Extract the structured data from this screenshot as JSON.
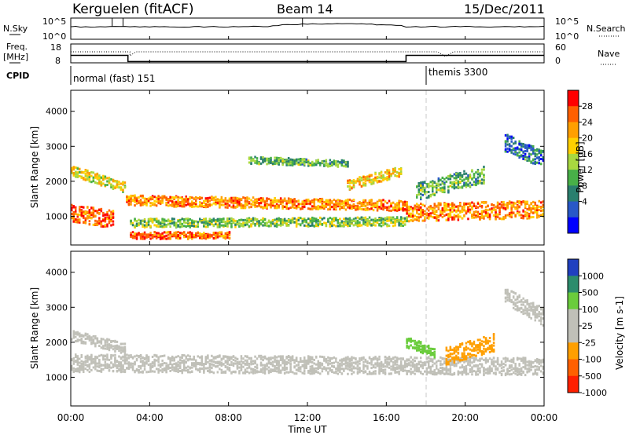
{
  "header": {
    "station": "Kerguelen (fitACF)",
    "beam": "Beam 14",
    "date": "15/Dec/2011"
  },
  "aux_panels": {
    "nsky_label": "N.Sky",
    "nsky_ticks": [
      "10^5",
      "10^0"
    ],
    "nsearch_label": "N.Search",
    "nsearch_ticks": [
      "10^5",
      "10^0"
    ],
    "freq_label": "Freq.",
    "freq_unit": "[MHz]",
    "freq_ticks": [
      "18",
      "8"
    ],
    "nave_label": "Nave",
    "nave_ticks": [
      "60",
      "0"
    ],
    "cpid_label": "CPID",
    "cpid_modes": [
      {
        "name": "normal (fast) 151",
        "start_hour": 0
      },
      {
        "name": "themis 3300",
        "start_hour": 18
      }
    ]
  },
  "chart_data": [
    {
      "type": "heatmap",
      "title": "",
      "xlabel": "Time UT",
      "ylabel": "Slant Range [km]",
      "x_ticks": [
        "00:00",
        "04:00",
        "08:00",
        "12:00",
        "16:00",
        "20:00",
        "00:00"
      ],
      "xlim_hours": [
        0,
        24
      ],
      "ylim_km": [
        180,
        4600
      ],
      "y_ticks": [
        1000,
        2000,
        3000,
        4000
      ],
      "colorbar": {
        "label": "Power [dB]",
        "ticks": [
          "28",
          "24",
          "20",
          "16",
          "12",
          "8",
          "4"
        ],
        "colors": [
          "#ff0000",
          "#ff6000",
          "#ff9f00",
          "#ffd000",
          "#a8d840",
          "#48b048",
          "#2a7f6e",
          "#2858c8",
          "#0000ff"
        ]
      },
      "features": [
        {
          "name": "band",
          "hour_start": 0.0,
          "hour_end": 2.8,
          "km_start": 2300,
          "km_end": 1800,
          "width": 300,
          "level": 18
        },
        {
          "name": "band",
          "hour_start": 0.0,
          "hour_end": 2.2,
          "km_start": 1100,
          "km_end": 900,
          "width": 500,
          "level": 26
        },
        {
          "name": "band",
          "hour_start": 2.8,
          "hour_end": 17.0,
          "km_start": 1450,
          "km_end": 1300,
          "width": 300,
          "level": 24
        },
        {
          "name": "band",
          "hour_start": 3.0,
          "hour_end": 8.0,
          "km_start": 450,
          "km_end": 450,
          "width": 200,
          "level": 26
        },
        {
          "name": "band",
          "hour_start": 3.0,
          "hour_end": 17.0,
          "km_start": 800,
          "km_end": 850,
          "width": 250,
          "level": 14
        },
        {
          "name": "band",
          "hour_start": 14.0,
          "hour_end": 16.8,
          "km_start": 1900,
          "km_end": 2300,
          "width": 300,
          "level": 20
        },
        {
          "name": "band",
          "hour_start": 17.0,
          "hour_end": 24.0,
          "km_start": 1100,
          "km_end": 1200,
          "width": 500,
          "level": 24
        },
        {
          "name": "band",
          "hour_start": 17.5,
          "hour_end": 21.0,
          "km_start": 1700,
          "km_end": 2200,
          "width": 500,
          "level": 12
        },
        {
          "name": "band",
          "hour_start": 22.0,
          "hour_end": 24.0,
          "km_start": 3100,
          "km_end": 2600,
          "width": 500,
          "level": 8
        },
        {
          "name": "band",
          "hour_start": 9.0,
          "hour_end": 14.0,
          "km_start": 2600,
          "km_end": 2500,
          "width": 200,
          "level": 12
        }
      ]
    },
    {
      "type": "heatmap",
      "title": "",
      "xlabel": "Time UT",
      "ylabel": "Slant Range [km]",
      "x_ticks": [
        "00:00",
        "04:00",
        "08:00",
        "12:00",
        "16:00",
        "20:00",
        "00:00"
      ],
      "xlim_hours": [
        0,
        24
      ],
      "ylim_km": [
        180,
        4600
      ],
      "y_ticks": [
        1000,
        2000,
        3000,
        4000
      ],
      "colorbar": {
        "label": "Velocity [m s-1]",
        "ticks": [
          "1000",
          "500",
          "100",
          "25",
          "-25",
          "-100",
          "-500",
          "-1000"
        ],
        "colors": [
          "#2040c0",
          "#2c8c6c",
          "#6acc3c",
          "#c0c0b8",
          "#c0c0b8",
          "#ff9f00",
          "#ff6000",
          "#ff2000"
        ]
      },
      "features": [
        {
          "name": "band",
          "hour_start": 0.0,
          "hour_end": 24.0,
          "km_start": 1400,
          "km_end": 1300,
          "width": 500,
          "level": 0
        },
        {
          "name": "band",
          "hour_start": 0.0,
          "hour_end": 2.8,
          "km_start": 2200,
          "km_end": 1800,
          "width": 300,
          "level": 0
        },
        {
          "name": "band",
          "hour_start": 17.0,
          "hour_end": 18.5,
          "km_start": 2000,
          "km_end": 1700,
          "width": 300,
          "level": 100
        },
        {
          "name": "band",
          "hour_start": 19.0,
          "hour_end": 21.5,
          "km_start": 1600,
          "km_end": 2000,
          "width": 500,
          "level": -100
        },
        {
          "name": "band",
          "hour_start": 22.0,
          "hour_end": 24.0,
          "km_start": 3300,
          "km_end": 2700,
          "width": 500,
          "level": 0
        }
      ]
    }
  ]
}
